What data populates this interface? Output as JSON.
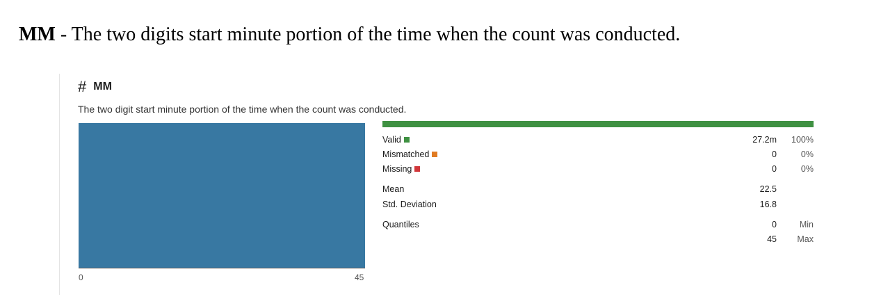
{
  "doc": {
    "title_bold": "MM",
    "title_rest": " - The two digits start minute portion of the time when the count was conducted."
  },
  "column": {
    "icon": "hash-icon",
    "name": "MM",
    "description": "The two digit start minute portion of the time when the count was conducted."
  },
  "histogram": {
    "x_min_label": "0",
    "x_max_label": "45",
    "bins": [
      {
        "from": 0,
        "to": 45,
        "relative_height": 1.0
      }
    ],
    "color": "#3878a2"
  },
  "stats": {
    "valid": {
      "label": "Valid",
      "value": "27.2m",
      "pct": "100%",
      "color": "#3f9142",
      "fill_fraction": 1.0
    },
    "mismatched": {
      "label": "Mismatched",
      "value": "0",
      "pct": "0%",
      "color": "#e07b22"
    },
    "missing": {
      "label": "Missing",
      "value": "0",
      "pct": "0%",
      "color": "#d1373a"
    },
    "mean": {
      "label": "Mean",
      "value": "22.5"
    },
    "std": {
      "label": "Std. Deviation",
      "value": "16.8"
    },
    "quantiles": {
      "label": "Quantiles",
      "min": {
        "value": "0",
        "label": "Min"
      },
      "max": {
        "value": "45",
        "label": "Max"
      }
    }
  }
}
